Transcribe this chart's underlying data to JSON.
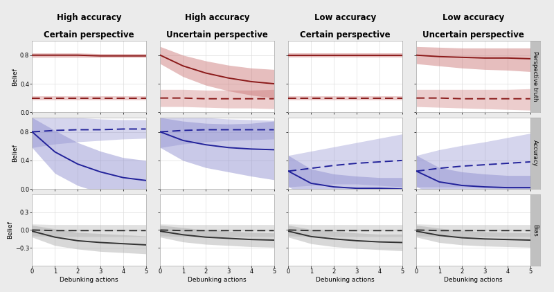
{
  "col_titles": [
    "High accuracy\nCertain perspective",
    "High accuracy\nUncertain perspective",
    "Low accuracy\nCertain perspective",
    "Low accuracy\nUncertain perspective"
  ],
  "row_labels": [
    "Perspective truth",
    "Accuracy",
    "Bias"
  ],
  "x": [
    0,
    1,
    2,
    3,
    4,
    5
  ],
  "plots": {
    "row0": {
      "col0": {
        "solid_mean": [
          0.8,
          0.8,
          0.8,
          0.79,
          0.79,
          0.79
        ],
        "solid_lo": [
          0.77,
          0.77,
          0.77,
          0.77,
          0.77,
          0.77
        ],
        "solid_hi": [
          0.83,
          0.83,
          0.83,
          0.82,
          0.82,
          0.82
        ],
        "dash_mean": [
          0.2,
          0.2,
          0.2,
          0.2,
          0.2,
          0.2
        ],
        "dash_lo": [
          0.17,
          0.17,
          0.17,
          0.17,
          0.17,
          0.17
        ],
        "dash_hi": [
          0.23,
          0.23,
          0.23,
          0.23,
          0.23,
          0.23
        ],
        "ylim": [
          0.0,
          1.0
        ],
        "yticks": [
          0.0,
          0.4,
          0.8
        ]
      },
      "col1": {
        "solid_mean": [
          0.8,
          0.65,
          0.55,
          0.48,
          0.43,
          0.4
        ],
        "solid_lo": [
          0.68,
          0.5,
          0.38,
          0.3,
          0.24,
          0.2
        ],
        "solid_hi": [
          0.92,
          0.8,
          0.72,
          0.66,
          0.62,
          0.6
        ],
        "dash_mean": [
          0.2,
          0.2,
          0.19,
          0.19,
          0.19,
          0.19
        ],
        "dash_lo": [
          0.08,
          0.08,
          0.07,
          0.06,
          0.06,
          0.05
        ],
        "dash_hi": [
          0.32,
          0.32,
          0.31,
          0.31,
          0.31,
          0.32
        ],
        "ylim": [
          0.0,
          1.0
        ],
        "yticks": [
          0.0,
          0.4,
          0.8
        ]
      },
      "col2": {
        "solid_mean": [
          0.8,
          0.8,
          0.8,
          0.8,
          0.8,
          0.8
        ],
        "solid_lo": [
          0.77,
          0.77,
          0.77,
          0.77,
          0.77,
          0.77
        ],
        "solid_hi": [
          0.83,
          0.83,
          0.83,
          0.83,
          0.83,
          0.83
        ],
        "dash_mean": [
          0.2,
          0.2,
          0.2,
          0.2,
          0.2,
          0.2
        ],
        "dash_lo": [
          0.17,
          0.17,
          0.17,
          0.17,
          0.17,
          0.17
        ],
        "dash_hi": [
          0.23,
          0.23,
          0.23,
          0.23,
          0.23,
          0.23
        ],
        "ylim": [
          0.0,
          1.0
        ],
        "yticks": [
          0.0,
          0.4,
          0.8
        ]
      },
      "col3": {
        "solid_mean": [
          0.8,
          0.78,
          0.77,
          0.76,
          0.76,
          0.75
        ],
        "solid_lo": [
          0.68,
          0.65,
          0.62,
          0.6,
          0.59,
          0.57
        ],
        "solid_hi": [
          0.92,
          0.91,
          0.9,
          0.9,
          0.9,
          0.9
        ],
        "dash_mean": [
          0.2,
          0.2,
          0.19,
          0.19,
          0.19,
          0.19
        ],
        "dash_lo": [
          0.08,
          0.07,
          0.06,
          0.05,
          0.04,
          0.03
        ],
        "dash_hi": [
          0.32,
          0.32,
          0.32,
          0.32,
          0.32,
          0.33
        ],
        "ylim": [
          0.0,
          1.0
        ],
        "yticks": [
          0.0,
          0.4,
          0.8
        ]
      }
    },
    "row1": {
      "col0": {
        "solid_mean": [
          0.8,
          0.52,
          0.35,
          0.24,
          0.16,
          0.12
        ],
        "solid_lo": [
          0.58,
          0.22,
          0.05,
          -0.05,
          -0.12,
          -0.16
        ],
        "solid_hi": [
          1.0,
          0.82,
          0.65,
          0.53,
          0.44,
          0.4
        ],
        "dash_mean": [
          0.8,
          0.82,
          0.83,
          0.83,
          0.84,
          0.84
        ],
        "dash_lo": [
          0.58,
          0.63,
          0.66,
          0.68,
          0.7,
          0.71
        ],
        "dash_hi": [
          1.0,
          1.0,
          1.0,
          0.98,
          0.97,
          0.97
        ],
        "ylim": [
          0.0,
          1.0
        ],
        "yticks": [
          0.0,
          0.4,
          0.8
        ]
      },
      "col1": {
        "solid_mean": [
          0.8,
          0.68,
          0.62,
          0.58,
          0.56,
          0.55
        ],
        "solid_lo": [
          0.58,
          0.4,
          0.3,
          0.24,
          0.18,
          0.13
        ],
        "solid_hi": [
          1.0,
          0.95,
          0.92,
          0.91,
          0.92,
          0.95
        ],
        "dash_mean": [
          0.8,
          0.82,
          0.83,
          0.83,
          0.83,
          0.83
        ],
        "dash_lo": [
          0.58,
          0.63,
          0.66,
          0.68,
          0.69,
          0.7
        ],
        "dash_hi": [
          1.0,
          1.0,
          1.0,
          0.98,
          0.97,
          0.96
        ],
        "ylim": [
          0.0,
          1.0
        ],
        "yticks": [
          0.0,
          0.4,
          0.8
        ]
      },
      "col2": {
        "solid_mean": [
          0.25,
          0.08,
          0.03,
          0.01,
          0.01,
          0.0
        ],
        "solid_lo": [
          0.03,
          -0.12,
          -0.15,
          -0.16,
          -0.16,
          -0.16
        ],
        "solid_hi": [
          0.47,
          0.28,
          0.21,
          0.18,
          0.16,
          0.16
        ],
        "dash_mean": [
          0.25,
          0.29,
          0.33,
          0.36,
          0.38,
          0.4
        ],
        "dash_lo": [
          0.03,
          0.05,
          0.07,
          0.07,
          0.05,
          0.03
        ],
        "dash_hi": [
          0.47,
          0.53,
          0.59,
          0.65,
          0.71,
          0.77
        ],
        "ylim": [
          0.0,
          1.0
        ],
        "yticks": [
          0.0,
          0.4,
          0.8
        ]
      },
      "col3": {
        "solid_mean": [
          0.25,
          0.1,
          0.05,
          0.03,
          0.02,
          0.02
        ],
        "solid_lo": [
          0.03,
          -0.1,
          -0.14,
          -0.15,
          -0.15,
          -0.15
        ],
        "solid_hi": [
          0.47,
          0.3,
          0.24,
          0.21,
          0.19,
          0.19
        ],
        "dash_mean": [
          0.25,
          0.29,
          0.32,
          0.34,
          0.36,
          0.38
        ],
        "dash_lo": [
          0.03,
          0.03,
          0.03,
          0.02,
          0.0,
          -0.02
        ],
        "dash_hi": [
          0.47,
          0.55,
          0.61,
          0.66,
          0.72,
          0.78
        ],
        "ylim": [
          0.0,
          1.0
        ],
        "yticks": [
          0.0,
          0.4,
          0.8
        ]
      }
    },
    "row2": {
      "col0": {
        "solid_mean": [
          -0.02,
          -0.12,
          -0.18,
          -0.21,
          -0.23,
          -0.25
        ],
        "solid_lo": [
          -0.12,
          -0.26,
          -0.32,
          -0.36,
          -0.38,
          -0.4
        ],
        "solid_hi": [
          0.08,
          0.02,
          -0.04,
          -0.06,
          -0.08,
          -0.1
        ],
        "dash_mean": [
          0.0,
          -0.01,
          -0.01,
          -0.01,
          -0.01,
          -0.01
        ],
        "dash_lo": [
          -0.1,
          -0.11,
          -0.11,
          -0.11,
          -0.11,
          -0.11
        ],
        "dash_hi": [
          0.1,
          0.09,
          0.09,
          0.09,
          0.09,
          0.09
        ],
        "ylim": [
          -0.6,
          0.6
        ],
        "yticks": [
          -0.3,
          0.0,
          0.3
        ]
      },
      "col1": {
        "solid_mean": [
          -0.02,
          -0.08,
          -0.12,
          -0.14,
          -0.16,
          -0.17
        ],
        "solid_lo": [
          -0.12,
          -0.2,
          -0.24,
          -0.26,
          -0.28,
          -0.29
        ],
        "solid_hi": [
          0.08,
          0.04,
          0.0,
          -0.02,
          -0.04,
          -0.05
        ],
        "dash_mean": [
          0.0,
          -0.01,
          -0.01,
          -0.01,
          -0.01,
          -0.01
        ],
        "dash_lo": [
          -0.1,
          -0.11,
          -0.11,
          -0.11,
          -0.11,
          -0.11
        ],
        "dash_hi": [
          0.1,
          0.09,
          0.09,
          0.09,
          0.09,
          0.09
        ],
        "ylim": [
          -0.6,
          0.6
        ],
        "yticks": [
          -0.3,
          0.0,
          0.3
        ]
      },
      "col2": {
        "solid_mean": [
          -0.02,
          -0.11,
          -0.15,
          -0.18,
          -0.2,
          -0.21
        ],
        "solid_lo": [
          -0.12,
          -0.23,
          -0.28,
          -0.31,
          -0.33,
          -0.35
        ],
        "solid_hi": [
          0.08,
          0.01,
          -0.02,
          -0.05,
          -0.07,
          -0.07
        ],
        "dash_mean": [
          0.0,
          -0.01,
          -0.01,
          -0.01,
          -0.01,
          -0.01
        ],
        "dash_lo": [
          -0.1,
          -0.11,
          -0.11,
          -0.11,
          -0.11,
          -0.11
        ],
        "dash_hi": [
          0.1,
          0.09,
          0.09,
          0.09,
          0.09,
          0.09
        ],
        "ylim": [
          -0.6,
          0.6
        ],
        "yticks": [
          -0.3,
          0.0,
          0.3
        ]
      },
      "col3": {
        "solid_mean": [
          -0.02,
          -0.09,
          -0.13,
          -0.15,
          -0.16,
          -0.17
        ],
        "solid_lo": [
          -0.12,
          -0.21,
          -0.25,
          -0.27,
          -0.28,
          -0.29
        ],
        "solid_hi": [
          0.08,
          0.03,
          -0.01,
          -0.03,
          -0.04,
          -0.05
        ],
        "dash_mean": [
          0.0,
          -0.01,
          -0.01,
          -0.01,
          -0.01,
          -0.01
        ],
        "dash_lo": [
          -0.1,
          -0.11,
          -0.11,
          -0.11,
          -0.11,
          -0.11
        ],
        "dash_hi": [
          0.1,
          0.09,
          0.09,
          0.09,
          0.09,
          0.09
        ],
        "ylim": [
          -0.6,
          0.6
        ],
        "yticks": [
          -0.3,
          0.0,
          0.3
        ]
      }
    }
  },
  "solid_color_row0": "#8B1A1A",
  "dash_color_row0": "#8B1A1A",
  "solid_fill_row0": "#C97070",
  "dash_fill_row0": "#C97070",
  "solid_color_row1": "#22229A",
  "dash_color_row1": "#22229A",
  "solid_fill_row1": "#8888CC",
  "dash_fill_row1": "#8888CC",
  "solid_color_row2": "#333333",
  "dash_color_row2": "#333333",
  "solid_fill_row2": "#AAAAAA",
  "dash_fill_row2": "#AAAAAA",
  "xlabel": "Debunking actions",
  "ylabel": "Belief",
  "background_color": "#EBEBEB",
  "plot_bg": "#FFFFFF",
  "grid_color": "#DDDDDD",
  "label_strip_color": "#C0C0C0",
  "title_fontsize": 8.5,
  "label_fontsize": 6.5,
  "tick_fontsize": 6
}
